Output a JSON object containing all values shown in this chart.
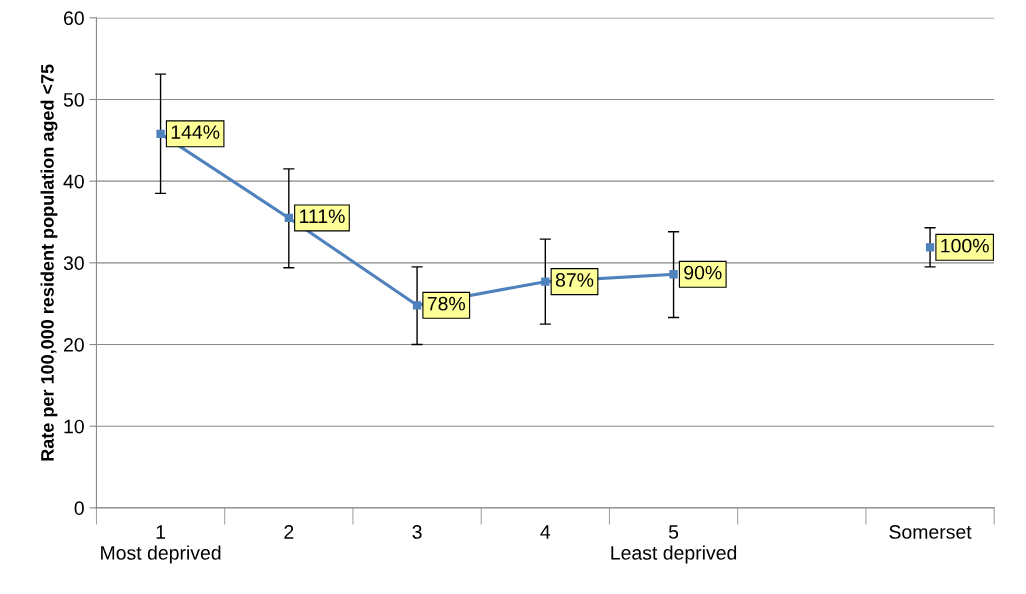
{
  "chart_data": {
    "type": "line",
    "ylabel": "Rate per 100,000 resident population aged <75",
    "categories": [
      "1\nMost deprived",
      "2",
      "3",
      "4",
      "5\nLeast deprived",
      null,
      "Somerset"
    ],
    "series": [
      {
        "color": "#4f81bd",
        "values": [
          45.8,
          35.5,
          24.8,
          27.7,
          28.6,
          null,
          31.9
        ],
        "errors": [
          [
            38.5,
            53.1
          ],
          [
            29.4,
            41.5
          ],
          [
            20.0,
            29.5
          ],
          [
            22.5,
            32.9
          ],
          [
            23.3,
            33.8
          ],
          null,
          [
            29.5,
            34.3
          ]
        ]
      }
    ],
    "annotations": [
      {
        "text": "144%",
        "x": "1\nMost deprived",
        "y": 45.8
      },
      {
        "text": "111%",
        "x": "2",
        "y": 35.5
      },
      {
        "text": "78%",
        "x": "3",
        "y": 24.8
      },
      {
        "text": "87%",
        "x": "4",
        "y": 27.7
      },
      {
        "text": "90%",
        "x": "5\nLeast deprived",
        "y": 28.6
      },
      {
        "text": "100%",
        "x": "Somerset",
        "y": 31.9
      }
    ],
    "ylim": [
      0,
      60
    ],
    "yticks": [
      0,
      10,
      20,
      30,
      40,
      50,
      60
    ],
    "grid": "y",
    "marker": "square",
    "line_style": "solid"
  }
}
